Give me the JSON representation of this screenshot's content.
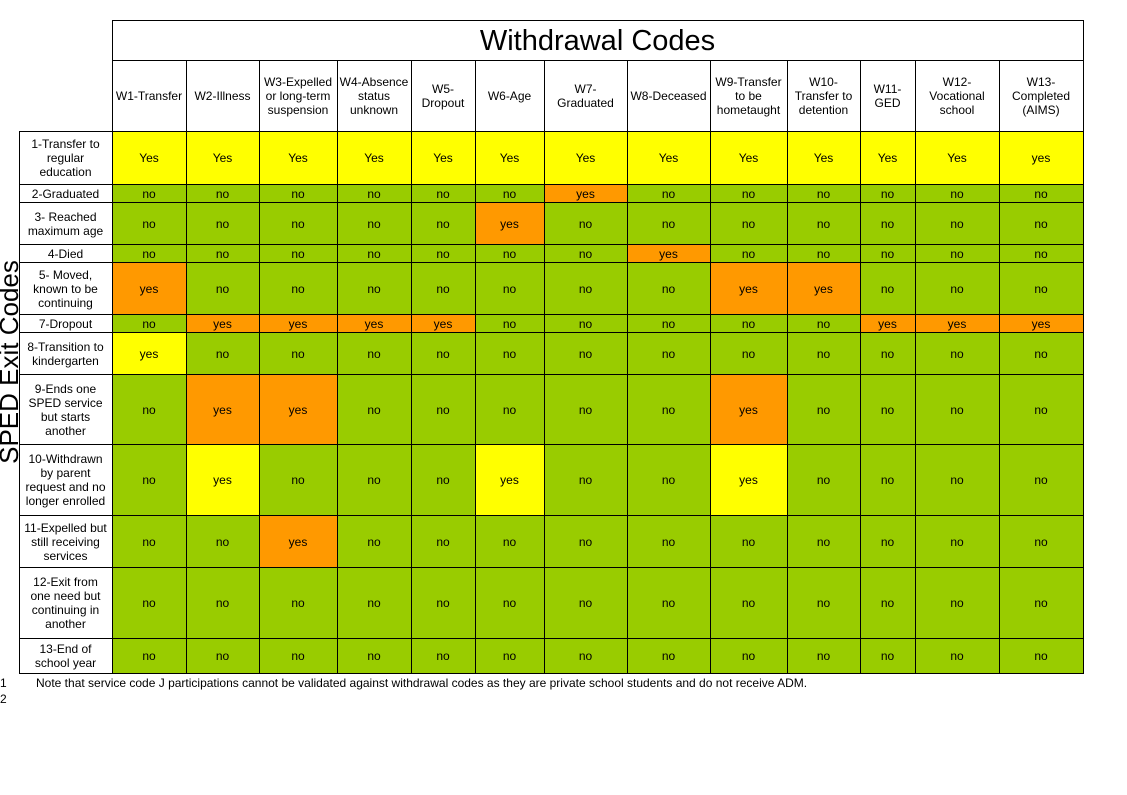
{
  "title": "Withdrawal Codes",
  "side_label": "SPED Exit Codes",
  "columns": [
    "W1-Transfer",
    "W2-Illness",
    "W3-Expelled or long-term suspension",
    "W4-Absence status unknown",
    "W5-Dropout",
    "W6-Age",
    "W7-Graduated",
    "W8-Deceased",
    "W9-Transfer to be hometaught",
    "W10-Transfer to detention",
    "W11-GED",
    "W12-Vocational school",
    "W13-Completed (AIMS)"
  ],
  "rows": [
    {
      "label": "1-Transfer to regular education",
      "values": [
        "Yes",
        "Yes",
        "Yes",
        "Yes",
        "Yes",
        "Yes",
        "Yes",
        "Yes",
        "Yes",
        "Yes",
        "Yes",
        "Yes",
        "yes"
      ],
      "colors": [
        "Y",
        "Y",
        "Y",
        "Y",
        "Y",
        "Y",
        "Y",
        "Y",
        "Y",
        "Y",
        "Y",
        "Y",
        "Y"
      ]
    },
    {
      "label": "2-Graduated",
      "values": [
        "no",
        "no",
        "no",
        "no",
        "no",
        "no",
        "yes",
        "no",
        "no",
        "no",
        "no",
        "no",
        "no"
      ],
      "colors": [
        "G",
        "G",
        "G",
        "G",
        "G",
        "G",
        "O",
        "G",
        "G",
        "G",
        "G",
        "G",
        "G"
      ]
    },
    {
      "label": "3- Reached maximum age",
      "values": [
        "no",
        "no",
        "no",
        "no",
        "no",
        "yes",
        "no",
        "no",
        "no",
        "no",
        "no",
        "no",
        "no"
      ],
      "colors": [
        "G",
        "G",
        "G",
        "G",
        "G",
        "O",
        "G",
        "G",
        "G",
        "G",
        "G",
        "G",
        "G"
      ]
    },
    {
      "label": "4-Died",
      "values": [
        "no",
        "no",
        "no",
        "no",
        "no",
        "no",
        "no",
        "yes",
        "no",
        "no",
        "no",
        "no",
        "no"
      ],
      "colors": [
        "G",
        "G",
        "G",
        "G",
        "G",
        "G",
        "G",
        "O",
        "G",
        "G",
        "G",
        "G",
        "G"
      ]
    },
    {
      "label": "5- Moved, known to be continuing",
      "values": [
        "yes",
        "no",
        "no",
        "no",
        "no",
        "no",
        "no",
        "no",
        "yes",
        "yes",
        "no",
        "no",
        "no"
      ],
      "colors": [
        "O",
        "G",
        "G",
        "G",
        "G",
        "G",
        "G",
        "G",
        "O",
        "O",
        "G",
        "G",
        "G"
      ]
    },
    {
      "label": "7-Dropout",
      "values": [
        "no",
        "yes",
        "yes",
        "yes",
        "yes",
        "no",
        "no",
        "no",
        "no",
        "no",
        "yes",
        "yes",
        "yes"
      ],
      "colors": [
        "G",
        "O",
        "O",
        "O",
        "O",
        "G",
        "G",
        "G",
        "G",
        "G",
        "O",
        "O",
        "O"
      ]
    },
    {
      "label": "8-Transition to kindergarten",
      "values": [
        "yes",
        "no",
        "no",
        "no",
        "no",
        "no",
        "no",
        "no",
        "no",
        "no",
        "no",
        "no",
        "no"
      ],
      "colors": [
        "Y",
        "G",
        "G",
        "G",
        "G",
        "G",
        "G",
        "G",
        "G",
        "G",
        "G",
        "G",
        "G"
      ]
    },
    {
      "label": "9-Ends one SPED service but starts another",
      "values": [
        "no",
        "yes",
        "yes",
        "no",
        "no",
        "no",
        "no",
        "no",
        "yes",
        "no",
        "no",
        "no",
        "no"
      ],
      "colors": [
        "G",
        "O",
        "O",
        "G",
        "G",
        "G",
        "G",
        "G",
        "O",
        "G",
        "G",
        "G",
        "G"
      ]
    },
    {
      "label": "10-Withdrawn by parent request and no longer enrolled",
      "values": [
        "no",
        "yes",
        "no",
        "no",
        "no",
        "yes",
        "no",
        "no",
        "yes",
        "no",
        "no",
        "no",
        "no"
      ],
      "colors": [
        "G",
        "Y",
        "G",
        "G",
        "G",
        "Y",
        "G",
        "G",
        "Y",
        "G",
        "G",
        "G",
        "G"
      ]
    },
    {
      "label": "11-Expelled but still receiving services",
      "values": [
        "no",
        "no",
        "yes",
        "no",
        "no",
        "no",
        "no",
        "no",
        "no",
        "no",
        "no",
        "no",
        "no"
      ],
      "colors": [
        "G",
        "G",
        "O",
        "G",
        "G",
        "G",
        "G",
        "G",
        "G",
        "G",
        "G",
        "G",
        "G"
      ]
    },
    {
      "label": "12-Exit from one need but continuing in another",
      "values": [
        "no",
        "no",
        "no",
        "no",
        "no",
        "no",
        "no",
        "no",
        "no",
        "no",
        "no",
        "no",
        "no"
      ],
      "colors": [
        "G",
        "G",
        "G",
        "G",
        "G",
        "G",
        "G",
        "G",
        "G",
        "G",
        "G",
        "G",
        "G"
      ]
    },
    {
      "label": "13-End of school year",
      "values": [
        "no",
        "no",
        "no",
        "no",
        "no",
        "no",
        "no",
        "no",
        "no",
        "no",
        "no",
        "no",
        "no"
      ],
      "colors": [
        "G",
        "G",
        "G",
        "G",
        "G",
        "G",
        "G",
        "G",
        "G",
        "G",
        "G",
        "G",
        "G"
      ]
    }
  ],
  "footnote": {
    "line_numbers": [
      "1",
      "2"
    ],
    "text": "Note that service code J participations cannot be validated against withdrawal codes as they are private school students and do not receive ADM."
  }
}
